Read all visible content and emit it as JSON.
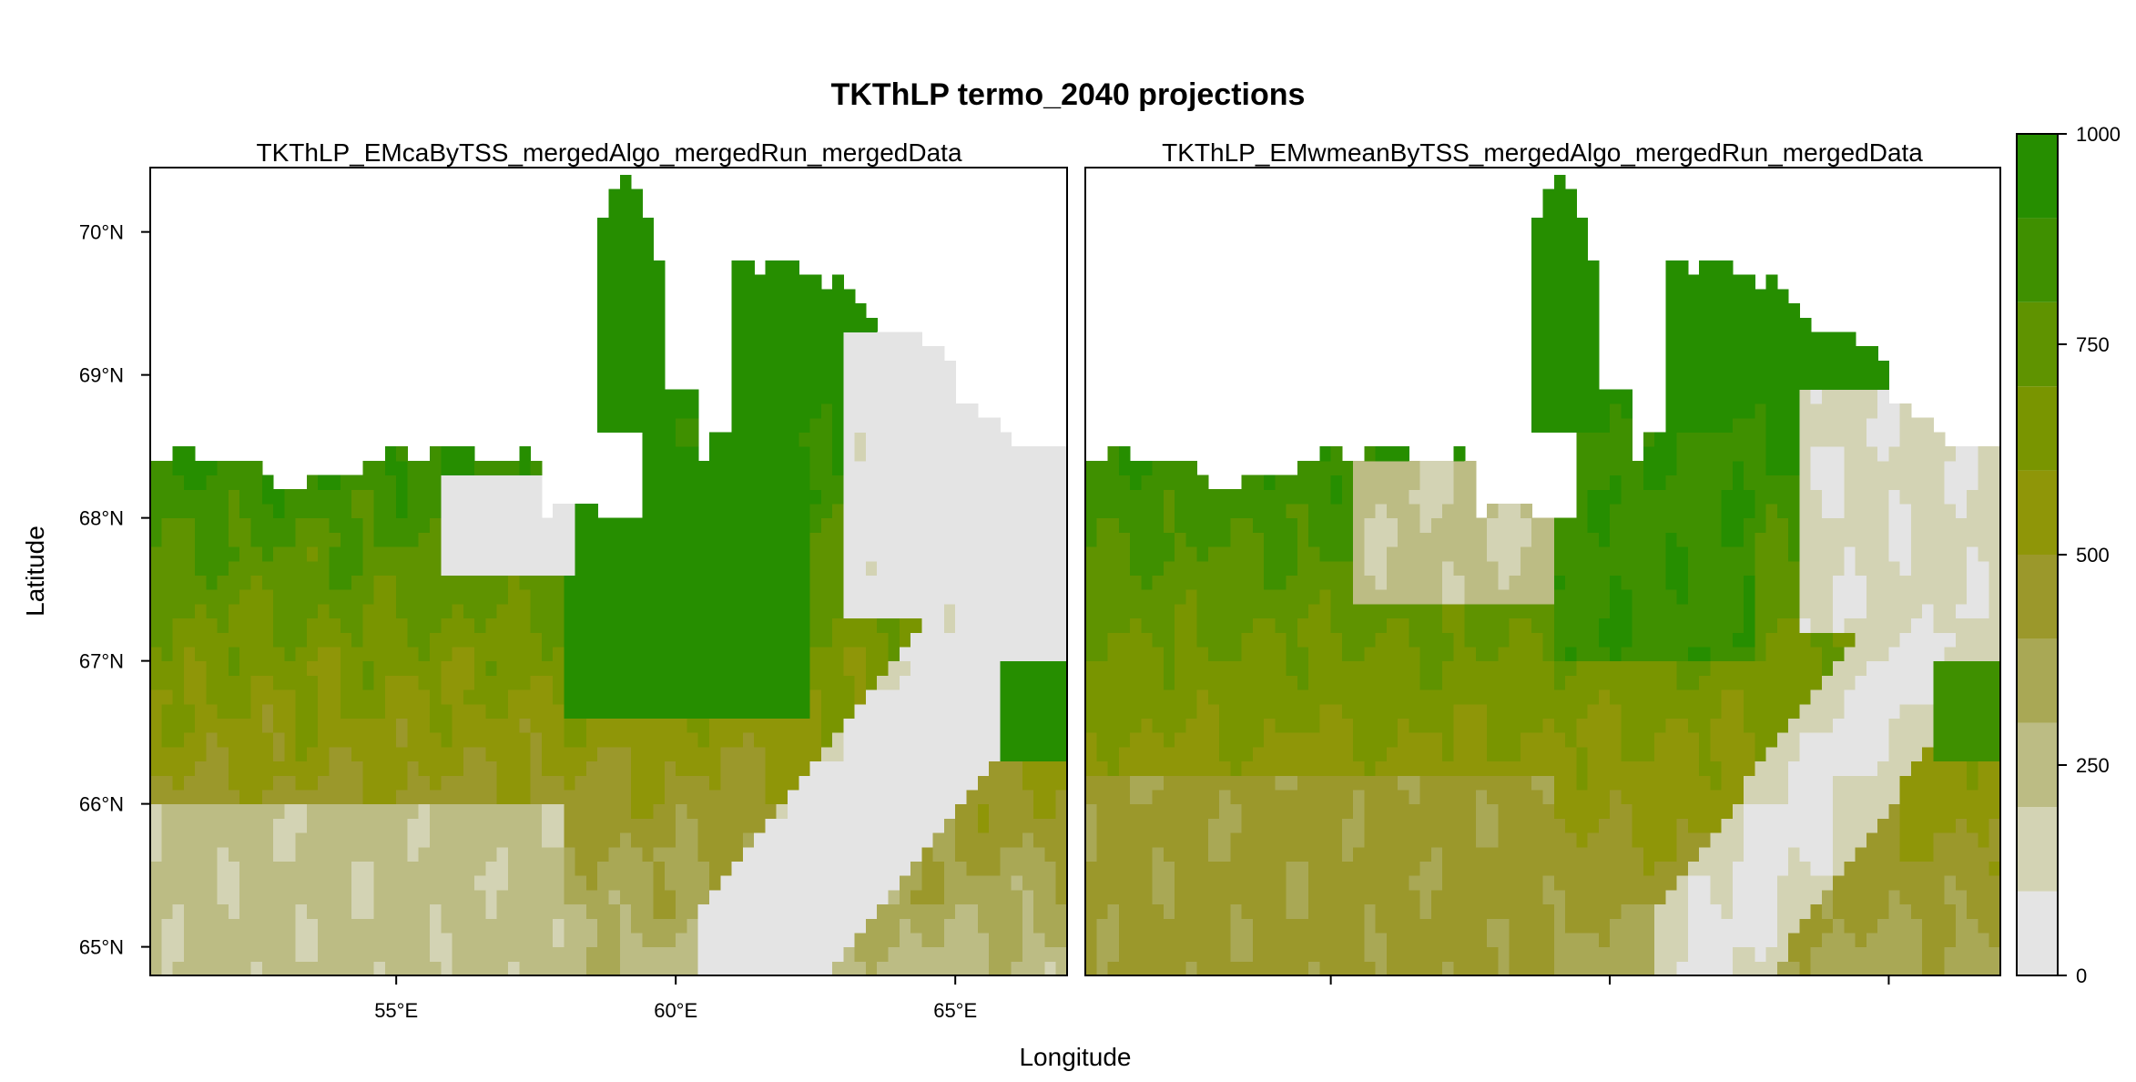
{
  "chart_data": {
    "type": "heatmap",
    "title": "TKThLP termo_2040 projections",
    "xlabel": "Longitude",
    "ylabel": "Latitude",
    "xlim": [
      50.6,
      67.0
    ],
    "ylim": [
      64.8,
      70.45
    ],
    "x_ticks": [
      {
        "value": 55,
        "label": "55°E"
      },
      {
        "value": 60,
        "label": "60°E"
      },
      {
        "value": 65,
        "label": "65°E"
      }
    ],
    "y_ticks": [
      {
        "value": 65,
        "label": "65°N"
      },
      {
        "value": 66,
        "label": "66°N"
      },
      {
        "value": 67,
        "label": "67°N"
      },
      {
        "value": 68,
        "label": "68°N"
      },
      {
        "value": 69,
        "label": "69°N"
      },
      {
        "value": 70,
        "label": "70°N"
      }
    ],
    "panels": [
      {
        "title": "TKThLP_EMcaByTSS_mergedAlgo_mergedRun_mergedData",
        "model": "ca"
      },
      {
        "title": "TKThLP_EMwmeanByTSS_mergedAlgo_mergedRun_mergedData",
        "model": "wmean"
      }
    ],
    "colorbar": {
      "range": [
        0,
        1000
      ],
      "ticks": [
        {
          "value": 0,
          "label": "0"
        },
        {
          "value": 250,
          "label": "250"
        },
        {
          "value": 500,
          "label": "500"
        },
        {
          "value": 750,
          "label": "750"
        },
        {
          "value": 1000,
          "label": "1000"
        }
      ],
      "breaks": [
        0,
        100,
        200,
        300,
        400,
        500,
        600,
        700,
        800,
        900,
        1000
      ],
      "colors": [
        "#e4e4e4",
        "#d3d3b4",
        "#bcbc84",
        "#a9a855",
        "#9b982b",
        "#8f9608",
        "#799500",
        "#5f9300",
        "#3f9000",
        "#268e00"
      ]
    }
  }
}
